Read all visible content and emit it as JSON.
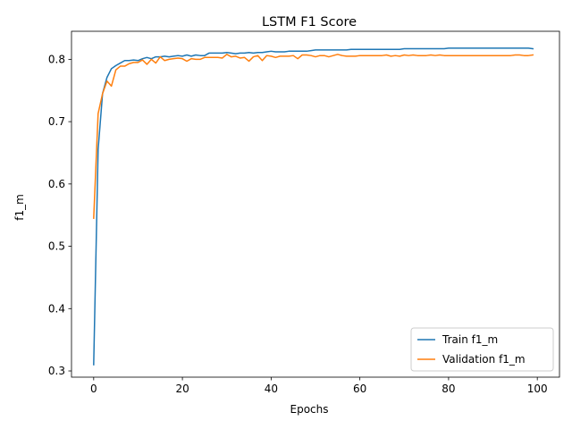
{
  "chart_data": {
    "type": "line",
    "title": "LSTM F1 Score",
    "xlabel": "Epochs",
    "ylabel": "f1_m",
    "xlim": [
      -5,
      105
    ],
    "ylim": [
      0.29,
      0.845
    ],
    "xticks": [
      0,
      20,
      40,
      60,
      80,
      100
    ],
    "yticks": [
      0.3,
      0.4,
      0.5,
      0.6,
      0.7,
      0.8
    ],
    "grid": false,
    "legend_position": "lower-right",
    "series": [
      {
        "name": "Train f1_m",
        "color": "#1f77b4",
        "x": [
          0,
          1,
          2,
          3,
          4,
          5,
          6,
          7,
          8,
          9,
          10,
          11,
          12,
          13,
          14,
          15,
          16,
          17,
          18,
          19,
          20,
          21,
          22,
          23,
          24,
          25,
          26,
          27,
          28,
          29,
          30,
          31,
          32,
          33,
          34,
          35,
          36,
          37,
          38,
          39,
          40,
          41,
          42,
          43,
          44,
          45,
          46,
          47,
          48,
          49,
          50,
          51,
          52,
          53,
          54,
          55,
          56,
          57,
          58,
          59,
          60,
          61,
          62,
          63,
          64,
          65,
          66,
          67,
          68,
          69,
          70,
          71,
          72,
          73,
          74,
          75,
          76,
          77,
          78,
          79,
          80,
          81,
          82,
          83,
          84,
          85,
          86,
          87,
          88,
          89,
          90,
          91,
          92,
          93,
          94,
          95,
          96,
          97,
          98,
          99
        ],
        "y": [
          0.31,
          0.655,
          0.745,
          0.771,
          0.785,
          0.79,
          0.794,
          0.798,
          0.798,
          0.799,
          0.798,
          0.801,
          0.803,
          0.801,
          0.804,
          0.804,
          0.805,
          0.804,
          0.805,
          0.806,
          0.805,
          0.807,
          0.805,
          0.807,
          0.806,
          0.806,
          0.81,
          0.81,
          0.81,
          0.81,
          0.811,
          0.81,
          0.809,
          0.81,
          0.81,
          0.811,
          0.81,
          0.811,
          0.811,
          0.812,
          0.813,
          0.812,
          0.812,
          0.812,
          0.813,
          0.813,
          0.813,
          0.813,
          0.813,
          0.814,
          0.815,
          0.815,
          0.815,
          0.815,
          0.815,
          0.815,
          0.815,
          0.815,
          0.816,
          0.816,
          0.816,
          0.816,
          0.816,
          0.816,
          0.816,
          0.816,
          0.816,
          0.816,
          0.816,
          0.816,
          0.817,
          0.817,
          0.817,
          0.817,
          0.817,
          0.817,
          0.817,
          0.817,
          0.817,
          0.817,
          0.818,
          0.818,
          0.818,
          0.818,
          0.818,
          0.818,
          0.818,
          0.818,
          0.818,
          0.818,
          0.818,
          0.818,
          0.818,
          0.818,
          0.818,
          0.818,
          0.818,
          0.818,
          0.818,
          0.817
        ]
      },
      {
        "name": "Validation f1_m",
        "color": "#ff7f0e",
        "x": [
          0,
          1,
          2,
          3,
          4,
          5,
          6,
          7,
          8,
          9,
          10,
          11,
          12,
          13,
          14,
          15,
          16,
          17,
          18,
          19,
          20,
          21,
          22,
          23,
          24,
          25,
          26,
          27,
          28,
          29,
          30,
          31,
          32,
          33,
          34,
          35,
          36,
          37,
          38,
          39,
          40,
          41,
          42,
          43,
          44,
          45,
          46,
          47,
          48,
          49,
          50,
          51,
          52,
          53,
          54,
          55,
          56,
          57,
          58,
          59,
          60,
          61,
          62,
          63,
          64,
          65,
          66,
          67,
          68,
          69,
          70,
          71,
          72,
          73,
          74,
          75,
          76,
          77,
          78,
          79,
          80,
          81,
          82,
          83,
          84,
          85,
          86,
          87,
          88,
          89,
          90,
          91,
          92,
          93,
          94,
          95,
          96,
          97,
          98,
          99
        ],
        "y": [
          0.545,
          0.713,
          0.745,
          0.765,
          0.757,
          0.783,
          0.789,
          0.789,
          0.793,
          0.795,
          0.795,
          0.799,
          0.792,
          0.8,
          0.794,
          0.804,
          0.798,
          0.8,
          0.801,
          0.802,
          0.801,
          0.797,
          0.801,
          0.8,
          0.8,
          0.803,
          0.803,
          0.803,
          0.803,
          0.802,
          0.808,
          0.804,
          0.805,
          0.802,
          0.803,
          0.797,
          0.804,
          0.806,
          0.798,
          0.806,
          0.805,
          0.803,
          0.805,
          0.805,
          0.805,
          0.806,
          0.801,
          0.807,
          0.807,
          0.806,
          0.804,
          0.806,
          0.806,
          0.804,
          0.806,
          0.808,
          0.806,
          0.805,
          0.805,
          0.805,
          0.806,
          0.806,
          0.806,
          0.806,
          0.806,
          0.806,
          0.807,
          0.805,
          0.806,
          0.805,
          0.807,
          0.806,
          0.807,
          0.806,
          0.806,
          0.806,
          0.807,
          0.806,
          0.807,
          0.806,
          0.806,
          0.806,
          0.806,
          0.806,
          0.806,
          0.806,
          0.806,
          0.806,
          0.806,
          0.806,
          0.806,
          0.806,
          0.806,
          0.806,
          0.806,
          0.807,
          0.807,
          0.806,
          0.806,
          0.807
        ]
      }
    ]
  }
}
